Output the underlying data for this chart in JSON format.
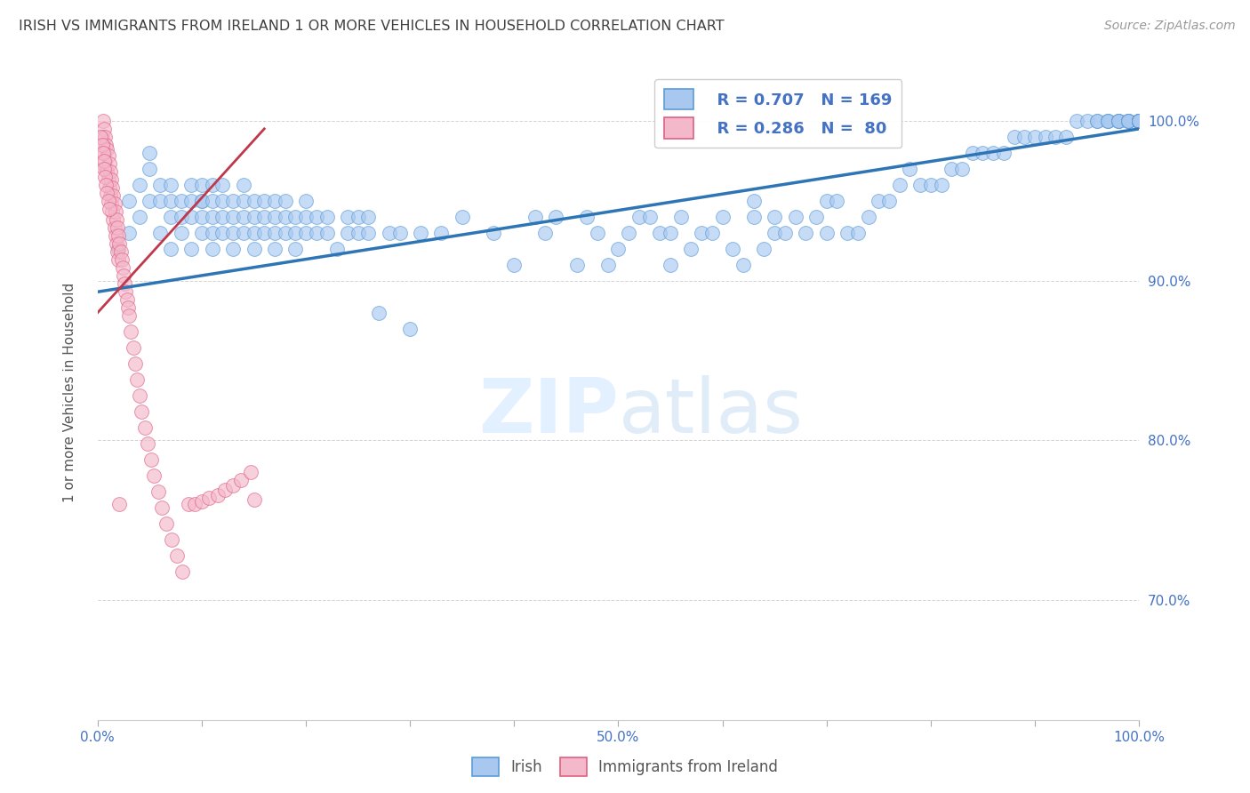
{
  "title": "IRISH VS IMMIGRANTS FROM IRELAND 1 OR MORE VEHICLES IN HOUSEHOLD CORRELATION CHART",
  "source": "Source: ZipAtlas.com",
  "ylabel": "1 or more Vehicles in Household",
  "watermark_zip": "ZIP",
  "watermark_atlas": "atlas",
  "legend_irish_R": "R = 0.707",
  "legend_irish_N": "N = 169",
  "legend_immig_R": "R = 0.286",
  "legend_immig_N": "N =  80",
  "xlim": [
    0.0,
    1.0
  ],
  "ylim": [
    0.625,
    1.035
  ],
  "xtick_vals": [
    0.0,
    0.1,
    0.2,
    0.3,
    0.4,
    0.5,
    0.6,
    0.7,
    0.8,
    0.9,
    1.0
  ],
  "xtick_labels": [
    "0.0%",
    "",
    "",
    "",
    "",
    "50.0%",
    "",
    "",
    "",
    "",
    "100.0%"
  ],
  "ytick_vals": [
    0.7,
    0.8,
    0.9,
    1.0
  ],
  "ytick_labels": [
    "70.0%",
    "80.0%",
    "90.0%",
    "100.0%"
  ],
  "color_irish_fill": "#a8c8f0",
  "color_irish_edge": "#5b9bd5",
  "color_immig_fill": "#f4b8cb",
  "color_immig_edge": "#e06080",
  "color_line_irish": "#2e75b6",
  "color_line_immig": "#c0384b",
  "title_color": "#404040",
  "axis_label_color": "#4472c4",
  "tick_color": "#4472c4",
  "grid_color": "#d0d0d0",
  "bg_color": "#ffffff",
  "irish_x": [
    0.02,
    0.03,
    0.03,
    0.04,
    0.04,
    0.05,
    0.05,
    0.05,
    0.06,
    0.06,
    0.06,
    0.07,
    0.07,
    0.07,
    0.07,
    0.08,
    0.08,
    0.08,
    0.09,
    0.09,
    0.09,
    0.09,
    0.1,
    0.1,
    0.1,
    0.1,
    0.1,
    0.11,
    0.11,
    0.11,
    0.11,
    0.11,
    0.12,
    0.12,
    0.12,
    0.12,
    0.13,
    0.13,
    0.13,
    0.13,
    0.14,
    0.14,
    0.14,
    0.14,
    0.15,
    0.15,
    0.15,
    0.15,
    0.16,
    0.16,
    0.16,
    0.17,
    0.17,
    0.17,
    0.17,
    0.18,
    0.18,
    0.18,
    0.19,
    0.19,
    0.19,
    0.2,
    0.2,
    0.2,
    0.21,
    0.21,
    0.22,
    0.22,
    0.23,
    0.24,
    0.24,
    0.25,
    0.25,
    0.26,
    0.26,
    0.27,
    0.28,
    0.29,
    0.3,
    0.31,
    0.33,
    0.35,
    0.38,
    0.4,
    0.42,
    0.43,
    0.44,
    0.46,
    0.47,
    0.48,
    0.49,
    0.5,
    0.51,
    0.52,
    0.53,
    0.54,
    0.55,
    0.55,
    0.56,
    0.57,
    0.58,
    0.59,
    0.6,
    0.61,
    0.62,
    0.63,
    0.63,
    0.64,
    0.65,
    0.65,
    0.66,
    0.67,
    0.68,
    0.69,
    0.7,
    0.7,
    0.71,
    0.72,
    0.73,
    0.74,
    0.75,
    0.76,
    0.77,
    0.78,
    0.79,
    0.8,
    0.81,
    0.82,
    0.83,
    0.84,
    0.85,
    0.86,
    0.87,
    0.88,
    0.89,
    0.9,
    0.91,
    0.92,
    0.93,
    0.94,
    0.95,
    0.96,
    0.96,
    0.97,
    0.97,
    0.97,
    0.98,
    0.98,
    0.98,
    0.98,
    0.99,
    0.99,
    0.99,
    0.99,
    0.99,
    1.0,
    1.0,
    1.0,
    1.0,
    1.0,
    1.0,
    1.0,
    1.0,
    1.0,
    1.0,
    1.0,
    1.0,
    1.0,
    1.0,
    1.0
  ],
  "irish_y": [
    0.92,
    0.93,
    0.95,
    0.96,
    0.94,
    0.95,
    0.97,
    0.98,
    0.93,
    0.95,
    0.96,
    0.92,
    0.94,
    0.95,
    0.96,
    0.93,
    0.94,
    0.95,
    0.92,
    0.94,
    0.95,
    0.96,
    0.93,
    0.94,
    0.95,
    0.95,
    0.96,
    0.92,
    0.93,
    0.94,
    0.95,
    0.96,
    0.93,
    0.94,
    0.95,
    0.96,
    0.92,
    0.93,
    0.94,
    0.95,
    0.93,
    0.94,
    0.95,
    0.96,
    0.92,
    0.93,
    0.94,
    0.95,
    0.93,
    0.94,
    0.95,
    0.92,
    0.93,
    0.94,
    0.95,
    0.93,
    0.94,
    0.95,
    0.92,
    0.93,
    0.94,
    0.93,
    0.94,
    0.95,
    0.93,
    0.94,
    0.93,
    0.94,
    0.92,
    0.93,
    0.94,
    0.93,
    0.94,
    0.93,
    0.94,
    0.88,
    0.93,
    0.93,
    0.87,
    0.93,
    0.93,
    0.94,
    0.93,
    0.91,
    0.94,
    0.93,
    0.94,
    0.91,
    0.94,
    0.93,
    0.91,
    0.92,
    0.93,
    0.94,
    0.94,
    0.93,
    0.93,
    0.91,
    0.94,
    0.92,
    0.93,
    0.93,
    0.94,
    0.92,
    0.91,
    0.94,
    0.95,
    0.92,
    0.94,
    0.93,
    0.93,
    0.94,
    0.93,
    0.94,
    0.93,
    0.95,
    0.95,
    0.93,
    0.93,
    0.94,
    0.95,
    0.95,
    0.96,
    0.97,
    0.96,
    0.96,
    0.96,
    0.97,
    0.97,
    0.98,
    0.98,
    0.98,
    0.98,
    0.99,
    0.99,
    0.99,
    0.99,
    0.99,
    0.99,
    1.0,
    1.0,
    1.0,
    1.0,
    1.0,
    1.0,
    1.0,
    1.0,
    1.0,
    1.0,
    1.0,
    1.0,
    1.0,
    1.0,
    1.0,
    1.0,
    1.0,
    1.0,
    1.0,
    1.0,
    1.0,
    1.0,
    1.0,
    1.0,
    1.0,
    1.0,
    1.0,
    1.0,
    1.0,
    1.0,
    1.0
  ],
  "immig_x": [
    0.004,
    0.005,
    0.005,
    0.006,
    0.006,
    0.007,
    0.007,
    0.008,
    0.008,
    0.009,
    0.009,
    0.01,
    0.01,
    0.011,
    0.011,
    0.012,
    0.012,
    0.013,
    0.013,
    0.014,
    0.014,
    0.015,
    0.015,
    0.016,
    0.016,
    0.017,
    0.017,
    0.018,
    0.018,
    0.019,
    0.019,
    0.02,
    0.02,
    0.021,
    0.022,
    0.023,
    0.024,
    0.025,
    0.026,
    0.027,
    0.028,
    0.029,
    0.03,
    0.032,
    0.034,
    0.036,
    0.038,
    0.04,
    0.042,
    0.045,
    0.048,
    0.051,
    0.054,
    0.058,
    0.062,
    0.066,
    0.071,
    0.076,
    0.081,
    0.087,
    0.093,
    0.1,
    0.107,
    0.115,
    0.122,
    0.13,
    0.138,
    0.147,
    0.003,
    0.004,
    0.005,
    0.006,
    0.006,
    0.007,
    0.008,
    0.009,
    0.01,
    0.011,
    0.021,
    0.15
  ],
  "immig_y": [
    0.99,
    1.0,
    0.985,
    0.995,
    0.98,
    0.99,
    0.975,
    0.985,
    0.97,
    0.982,
    0.968,
    0.978,
    0.963,
    0.973,
    0.958,
    0.968,
    0.953,
    0.963,
    0.948,
    0.958,
    0.943,
    0.953,
    0.938,
    0.948,
    0.933,
    0.943,
    0.928,
    0.938,
    0.923,
    0.933,
    0.918,
    0.928,
    0.913,
    0.923,
    0.918,
    0.913,
    0.908,
    0.903,
    0.898,
    0.893,
    0.888,
    0.883,
    0.878,
    0.868,
    0.858,
    0.848,
    0.838,
    0.828,
    0.818,
    0.808,
    0.798,
    0.788,
    0.778,
    0.768,
    0.758,
    0.748,
    0.738,
    0.728,
    0.718,
    0.76,
    0.76,
    0.762,
    0.764,
    0.766,
    0.769,
    0.772,
    0.775,
    0.78,
    0.99,
    0.985,
    0.98,
    0.975,
    0.97,
    0.965,
    0.96,
    0.955,
    0.95,
    0.945,
    0.76,
    0.763
  ],
  "immig_trend_x": [
    0.0,
    0.16
  ],
  "immig_trend_y_start": 0.88,
  "immig_trend_y_end": 0.995,
  "irish_trend_x": [
    0.0,
    1.0
  ],
  "irish_trend_y_start": 0.893,
  "irish_trend_y_end": 0.995
}
